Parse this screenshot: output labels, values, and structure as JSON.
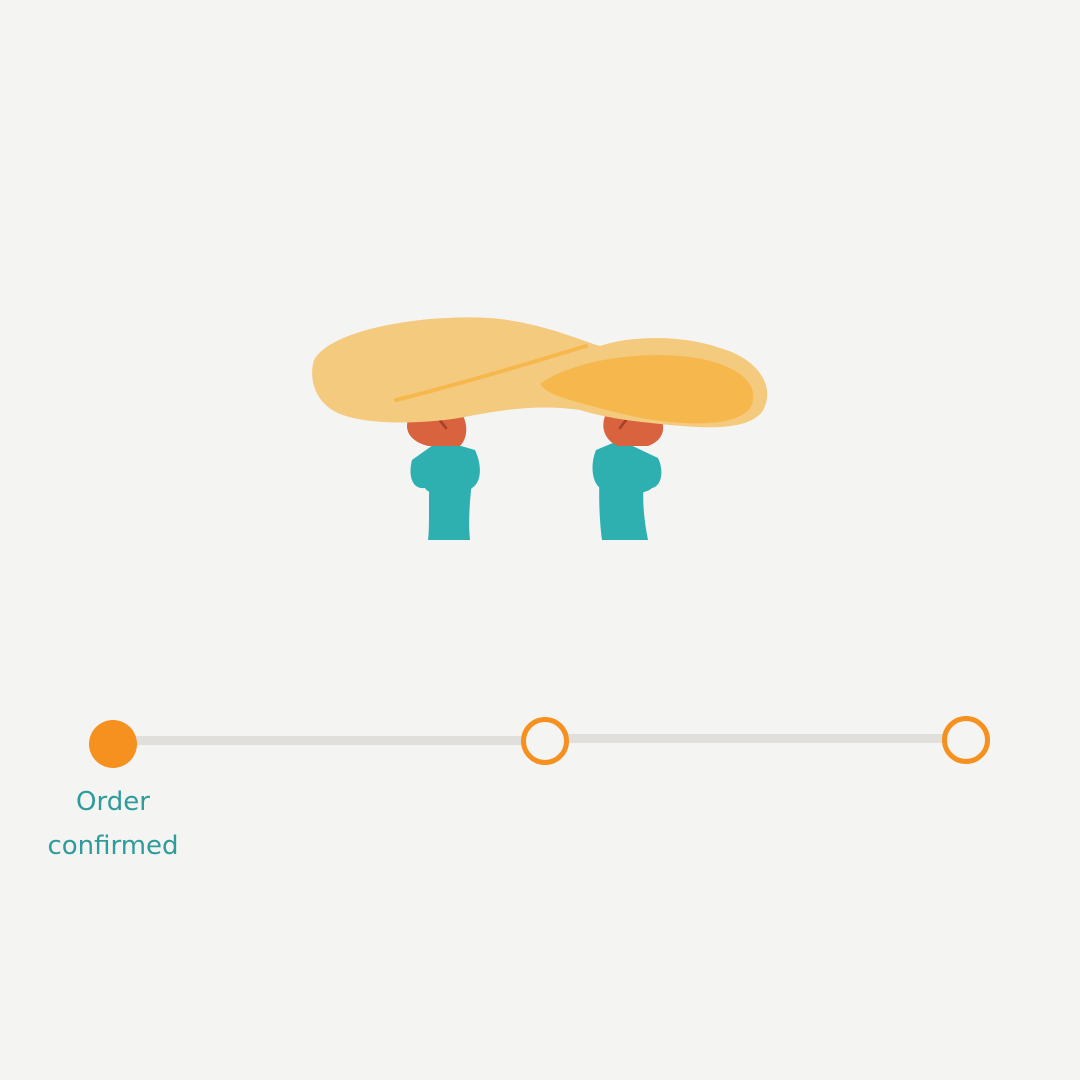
{
  "colors": {
    "background": "#f4f4f3",
    "accent": "#f6901e",
    "label": "#2e9c9a",
    "track": "#e0dfdc",
    "dough_light": "#f4ca7e",
    "dough_dark": "#f6b84c",
    "sleeve": "#2eb0b1",
    "hand": "#d9623f"
  },
  "illustration": {
    "icon": "pizza-dough-toss-illustration"
  },
  "progress": {
    "steps": [
      {
        "label": "Order\nconfirmed",
        "state": "done"
      },
      {
        "label": "",
        "state": "pending"
      },
      {
        "label": "",
        "state": "pending"
      }
    ],
    "current_step": 1
  }
}
